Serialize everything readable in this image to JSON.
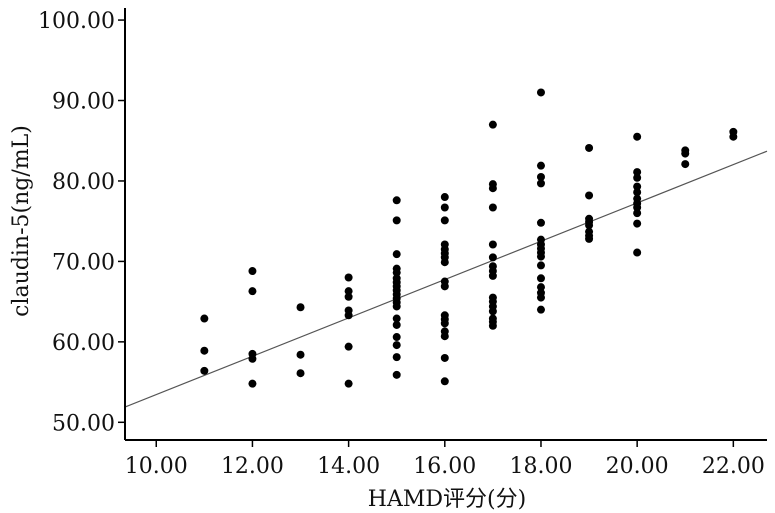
{
  "chart_data": {
    "type": "scatter",
    "xlabel": "HAMD评分(分)",
    "ylabel": "claudin-5(ng/mL)",
    "xlim": [
      9.35,
      22.7
    ],
    "ylim": [
      47.8,
      101.5
    ],
    "x_ticks": [
      "10.00",
      "12.00",
      "14.00",
      "16.00",
      "18.00",
      "20.00",
      "22.00"
    ],
    "x_tick_values": [
      10,
      12,
      14,
      16,
      18,
      20,
      22
    ],
    "y_ticks": [
      "50.00",
      "60.00",
      "70.00",
      "80.00",
      "90.00",
      "100.00"
    ],
    "y_tick_values": [
      50,
      60,
      70,
      80,
      90,
      100
    ],
    "grid": false,
    "point_color": "#000000",
    "fit_line_color": "#555555",
    "fit_line": {
      "x": [
        9.35,
        22.7
      ],
      "y": [
        51.9,
        83.7
      ]
    },
    "points": [
      [
        11,
        62.9
      ],
      [
        11,
        58.9
      ],
      [
        11,
        56.4
      ],
      [
        12,
        68.8
      ],
      [
        12,
        66.3
      ],
      [
        12,
        58.5
      ],
      [
        12,
        57.9
      ],
      [
        12,
        54.8
      ],
      [
        13,
        64.3
      ],
      [
        13,
        58.4
      ],
      [
        13,
        56.1
      ],
      [
        14,
        68.0
      ],
      [
        14,
        66.3
      ],
      [
        14,
        65.6
      ],
      [
        14,
        63.9
      ],
      [
        14,
        63.3
      ],
      [
        14,
        59.4
      ],
      [
        14,
        54.8
      ],
      [
        15,
        77.6
      ],
      [
        15,
        75.1
      ],
      [
        15,
        70.9
      ],
      [
        15,
        69.1
      ],
      [
        15,
        68.6
      ],
      [
        15,
        67.9
      ],
      [
        15,
        67.4
      ],
      [
        15,
        66.9
      ],
      [
        15,
        66.4
      ],
      [
        15,
        65.9
      ],
      [
        15,
        65.4
      ],
      [
        15,
        64.9
      ],
      [
        15,
        64.4
      ],
      [
        15,
        62.9
      ],
      [
        15,
        62.1
      ],
      [
        15,
        60.6
      ],
      [
        15,
        59.6
      ],
      [
        15,
        58.1
      ],
      [
        15,
        55.9
      ],
      [
        16,
        78.0
      ],
      [
        16,
        76.7
      ],
      [
        16,
        75.1
      ],
      [
        16,
        72.1
      ],
      [
        16,
        71.5
      ],
      [
        16,
        71.0
      ],
      [
        16,
        70.5
      ],
      [
        16,
        69.9
      ],
      [
        16,
        67.5
      ],
      [
        16,
        66.9
      ],
      [
        16,
        63.3
      ],
      [
        16,
        62.8
      ],
      [
        16,
        62.3
      ],
      [
        16,
        61.3
      ],
      [
        16,
        60.7
      ],
      [
        16,
        58.0
      ],
      [
        16,
        55.1
      ],
      [
        17,
        87.0
      ],
      [
        17,
        79.6
      ],
      [
        17,
        79.1
      ],
      [
        17,
        76.7
      ],
      [
        17,
        72.1
      ],
      [
        17,
        70.5
      ],
      [
        17,
        69.4
      ],
      [
        17,
        68.8
      ],
      [
        17,
        68.2
      ],
      [
        17,
        65.5
      ],
      [
        17,
        65.0
      ],
      [
        17,
        64.4
      ],
      [
        17,
        63.8
      ],
      [
        17,
        62.9
      ],
      [
        17,
        62.5
      ],
      [
        17,
        62.0
      ],
      [
        18,
        91.0
      ],
      [
        18,
        81.9
      ],
      [
        18,
        80.5
      ],
      [
        18,
        79.7
      ],
      [
        18,
        74.8
      ],
      [
        18,
        72.7
      ],
      [
        18,
        72.1
      ],
      [
        18,
        71.6
      ],
      [
        18,
        71.1
      ],
      [
        18,
        70.6
      ],
      [
        18,
        69.5
      ],
      [
        18,
        67.9
      ],
      [
        18,
        66.8
      ],
      [
        18,
        66.1
      ],
      [
        18,
        65.5
      ],
      [
        18,
        64.0
      ],
      [
        19,
        84.1
      ],
      [
        19,
        78.2
      ],
      [
        19,
        75.3
      ],
      [
        19,
        74.9
      ],
      [
        19,
        74.5
      ],
      [
        19,
        73.7
      ],
      [
        19,
        73.2
      ],
      [
        19,
        72.8
      ],
      [
        20,
        85.5
      ],
      [
        20,
        81.1
      ],
      [
        20,
        80.4
      ],
      [
        20,
        79.3
      ],
      [
        20,
        78.6
      ],
      [
        20,
        77.8
      ],
      [
        20,
        77.2
      ],
      [
        20,
        76.7
      ],
      [
        20,
        76.0
      ],
      [
        20,
        74.7
      ],
      [
        20,
        71.1
      ],
      [
        21,
        83.8
      ],
      [
        21,
        83.4
      ],
      [
        21,
        82.1
      ],
      [
        22,
        86.1
      ],
      [
        22,
        85.5
      ]
    ]
  }
}
